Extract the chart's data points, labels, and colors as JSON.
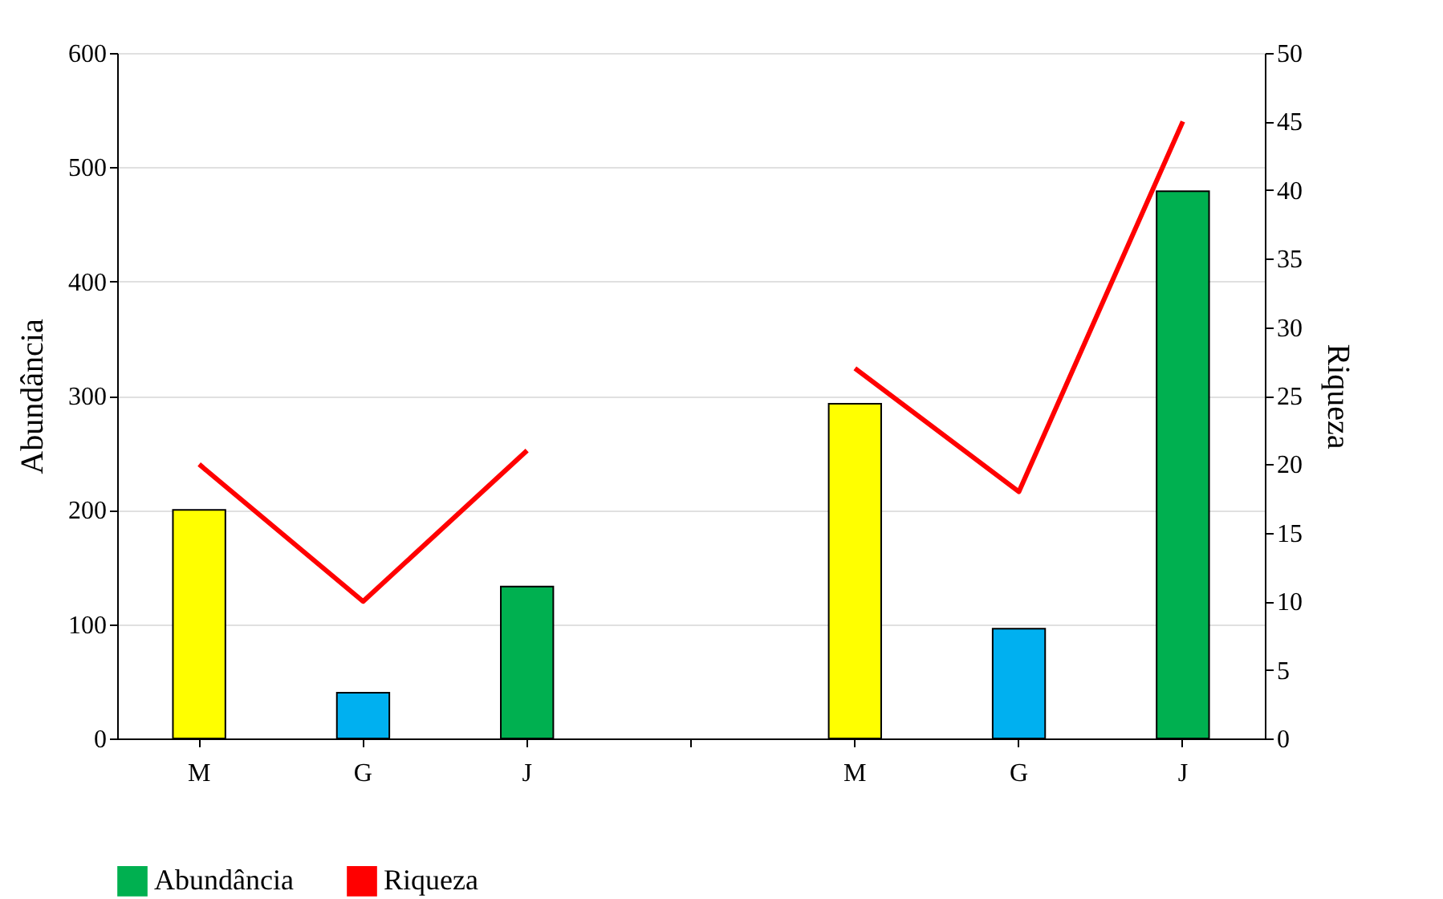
{
  "chart_data": {
    "type": "bar",
    "categories": [
      "M",
      "G",
      "J",
      null,
      "M",
      "G",
      "J"
    ],
    "series": [
      {
        "name": "Abundância",
        "color": "#00b050",
        "colors": [
          "#ffff00",
          "#00b0f0",
          "#00b050",
          null,
          "#ffff00",
          "#00b0f0",
          "#00b050"
        ],
        "values": [
          200,
          40,
          133,
          null,
          293,
          96,
          479
        ]
      },
      {
        "name": "Riqueza",
        "type": "line",
        "axis": "y2",
        "color": "#ff0000",
        "values": [
          20,
          10,
          21,
          null,
          27,
          18,
          45
        ]
      }
    ],
    "ylabel": "Abundância",
    "y2label": "Riqueza",
    "ylim": [
      0,
      600
    ],
    "yticks": [
      0,
      100,
      200,
      300,
      400,
      500,
      600
    ],
    "y2lim": [
      0,
      50
    ],
    "y2ticks": [
      0,
      5,
      10,
      15,
      20,
      25,
      30,
      35,
      40,
      45,
      50
    ],
    "grid": "y",
    "legend": "bottom"
  }
}
